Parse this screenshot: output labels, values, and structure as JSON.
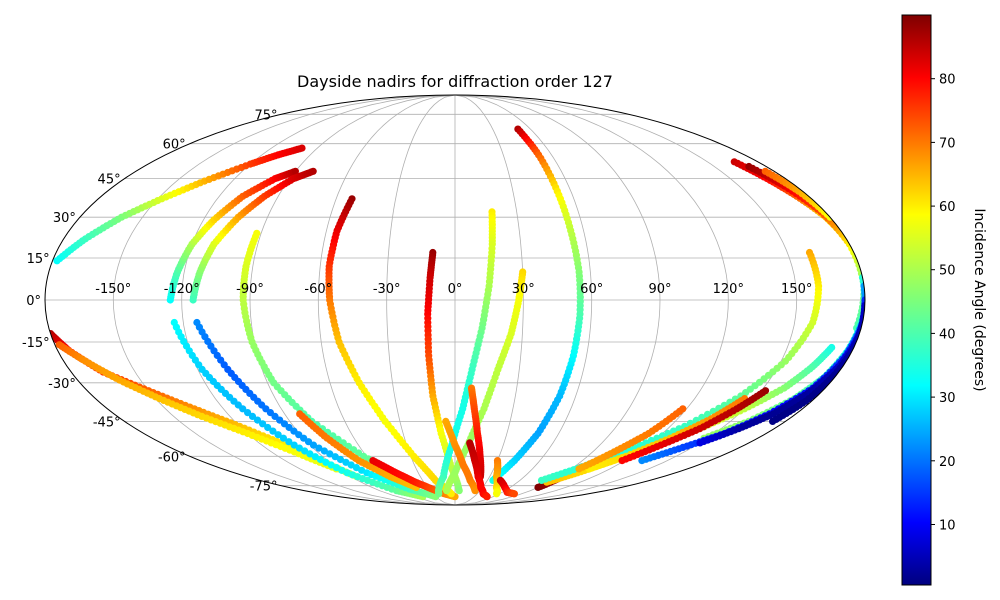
{
  "chart_data": {
    "type": "scatter",
    "projection": "mollweide",
    "title": "Dayside nadirs for diffraction order 127",
    "lon_ticks": [
      "-150°",
      "-120°",
      "-90°",
      "-60°",
      "-30°",
      "0°",
      "30°",
      "60°",
      "90°",
      "120°",
      "150°"
    ],
    "lon_tick_values": [
      -150,
      -120,
      -90,
      -60,
      -30,
      0,
      30,
      60,
      90,
      120,
      150
    ],
    "lat_ticks": [
      "75°",
      "60°",
      "45°",
      "30°",
      "15°",
      "0°",
      "-15°",
      "-30°",
      "-45°",
      "-60°",
      "-75°"
    ],
    "lat_tick_values": [
      75,
      60,
      45,
      30,
      15,
      0,
      -15,
      -30,
      -45,
      -60,
      -75
    ],
    "grid": true,
    "colormap": "jet",
    "colorbar": {
      "label": "Incidence Angle (degrees)",
      "ticks": [
        "10",
        "20",
        "30",
        "40",
        "50",
        "60",
        "70",
        "80"
      ],
      "tick_values": [
        10,
        20,
        30,
        40,
        50,
        60,
        70,
        80
      ],
      "range": [
        0.5,
        90
      ]
    },
    "series": [
      {
        "points": [
          [
            -180,
            -12,
            86
          ],
          [
            -175,
            -18,
            80
          ],
          [
            -165,
            -26,
            76
          ],
          [
            -150,
            -33,
            72
          ],
          [
            -135,
            -40,
            68
          ],
          [
            -120,
            -47,
            64
          ],
          [
            -105,
            -55,
            60
          ],
          [
            -95,
            -62,
            55
          ],
          [
            -85,
            -70,
            50
          ]
        ]
      },
      {
        "points": [
          [
            -178,
            -16,
            72
          ],
          [
            -170,
            -22,
            68
          ],
          [
            -160,
            -29,
            66
          ],
          [
            -148,
            -36,
            64
          ],
          [
            -135,
            -43,
            62
          ],
          [
            -120,
            -50,
            60
          ],
          [
            -105,
            -58,
            58
          ],
          [
            -92,
            -66,
            56
          ]
        ]
      },
      {
        "points": [
          [
            -178,
            14,
            32
          ],
          [
            -170,
            22,
            38
          ],
          [
            -160,
            30,
            45
          ],
          [
            -148,
            37,
            55
          ],
          [
            -135,
            44,
            65
          ],
          [
            -120,
            51,
            75
          ],
          [
            -110,
            55,
            80
          ],
          [
            -100,
            58,
            83
          ]
        ]
      },
      {
        "points": [
          [
            -125,
            0,
            32
          ],
          [
            -123,
            10,
            40
          ],
          [
            -120,
            20,
            50
          ],
          [
            -115,
            29,
            62
          ],
          [
            -108,
            38,
            72
          ],
          [
            -98,
            45,
            80
          ],
          [
            -90,
            48,
            86
          ]
        ]
      },
      {
        "points": [
          [
            -124,
            -8,
            32
          ],
          [
            -118,
            -25,
            28
          ],
          [
            -110,
            -40,
            26
          ],
          [
            -100,
            -55,
            28
          ],
          [
            -88,
            -68,
            34
          ],
          [
            -70,
            -78,
            42
          ],
          [
            -50,
            -82,
            50
          ]
        ]
      },
      {
        "points": [
          [
            -115,
            0,
            38
          ],
          [
            -113,
            10,
            46
          ],
          [
            -110,
            20,
            55
          ],
          [
            -104,
            30,
            66
          ],
          [
            -97,
            38,
            75
          ],
          [
            -88,
            45,
            83
          ],
          [
            -80,
            48,
            86
          ]
        ]
      },
      {
        "points": [
          [
            -114,
            -8,
            22
          ],
          [
            -106,
            -25,
            18
          ],
          [
            -98,
            -40,
            20
          ],
          [
            -88,
            -55,
            24
          ],
          [
            -72,
            -68,
            30
          ],
          [
            -52,
            -77,
            38
          ],
          [
            -30,
            -82,
            46
          ]
        ]
      },
      {
        "points": [
          [
            -92,
            24,
            58
          ],
          [
            -93,
            12,
            55
          ],
          [
            -93,
            0,
            52
          ],
          [
            -91,
            -15,
            48
          ],
          [
            -87,
            -30,
            44
          ],
          [
            -78,
            -45,
            40
          ],
          [
            -62,
            -60,
            42
          ],
          [
            -45,
            -72,
            46
          ]
        ]
      },
      {
        "points": [
          [
            -82,
            -42,
            72
          ],
          [
            -76,
            -52,
            70
          ],
          [
            -68,
            -62,
            68
          ],
          [
            -56,
            -70,
            66
          ],
          [
            -42,
            -76,
            64
          ]
        ]
      },
      {
        "points": [
          [
            -58,
            -62,
            82
          ],
          [
            -48,
            -68,
            80
          ],
          [
            -38,
            -73,
            78
          ],
          [
            -26,
            -77,
            74
          ],
          [
            -14,
            -80,
            70
          ],
          [
            0,
            -82,
            66
          ]
        ]
      },
      {
        "points": [
          [
            -52,
            37,
            88
          ],
          [
            -55,
            25,
            82
          ],
          [
            -56,
            12,
            76
          ],
          [
            -55,
            0,
            70
          ],
          [
            -52,
            -15,
            64
          ],
          [
            -46,
            -30,
            60
          ],
          [
            -38,
            -45,
            58
          ],
          [
            -28,
            -60,
            60
          ],
          [
            -18,
            -72,
            62
          ],
          [
            -5,
            -80,
            60
          ]
        ]
      },
      {
        "points": [
          [
            -10,
            17,
            88
          ],
          [
            -11,
            8,
            84
          ],
          [
            -12,
            -5,
            80
          ],
          [
            -12,
            -20,
            74
          ],
          [
            -11,
            -35,
            66
          ],
          [
            -8,
            -50,
            58
          ],
          [
            -3,
            -65,
            52
          ],
          [
            5,
            -78,
            46
          ]
        ]
      },
      {
        "points": [
          [
            18,
            32,
            60
          ],
          [
            17,
            20,
            55
          ],
          [
            15,
            5,
            50
          ],
          [
            12,
            -10,
            44
          ],
          [
            8,
            -25,
            38
          ],
          [
            4,
            -40,
            34
          ],
          [
            -2,
            -55,
            34
          ],
          [
            -10,
            -70,
            38
          ],
          [
            -22,
            -80,
            44
          ]
        ]
      },
      {
        "points": [
          [
            30,
            10,
            62
          ],
          [
            28,
            0,
            58
          ],
          [
            25,
            -12,
            55
          ],
          [
            20,
            -25,
            52
          ],
          [
            15,
            -40,
            50
          ],
          [
            8,
            -55,
            48
          ],
          [
            0,
            -68,
            48
          ],
          [
            -10,
            -78,
            50
          ]
        ]
      },
      {
        "points": [
          [
            8,
            -32,
            70
          ],
          [
            10,
            -40,
            74
          ],
          [
            13,
            -50,
            78
          ],
          [
            17,
            -60,
            82
          ],
          [
            22,
            -70,
            84
          ]
        ]
      },
      {
        "points": [
          [
            -5,
            -45,
            66
          ],
          [
            0,
            -55,
            68
          ],
          [
            6,
            -64,
            70
          ],
          [
            14,
            -72,
            70
          ],
          [
            24,
            -78,
            68
          ]
        ]
      },
      {
        "points": [
          [
            9,
            -54,
            86
          ],
          [
            14,
            -62,
            84
          ],
          [
            20,
            -70,
            82
          ],
          [
            28,
            -76,
            80
          ],
          [
            38,
            -80,
            80
          ],
          [
            50,
            -82,
            78
          ]
        ]
      },
      {
        "points": [
          [
            50,
            67,
            86
          ],
          [
            52,
            55,
            72
          ],
          [
            53,
            40,
            60
          ],
          [
            54,
            25,
            52
          ],
          [
            55,
            10,
            46
          ],
          [
            55,
            -5,
            40
          ],
          [
            54,
            -20,
            32
          ],
          [
            52,
            -35,
            26
          ],
          [
            48,
            -50,
            24
          ],
          [
            42,
            -62,
            28
          ],
          [
            35,
            -72,
            34
          ]
        ]
      },
      {
        "points": [
          [
            30,
            -62,
            70
          ],
          [
            36,
            -70,
            66
          ],
          [
            45,
            -76,
            62
          ],
          [
            56,
            -80,
            58
          ]
        ]
      },
      {
        "points": [
          [
            42,
            -72,
            84
          ],
          [
            54,
            -76,
            82
          ],
          [
            66,
            -79,
            78
          ],
          [
            80,
            -80,
            74
          ]
        ]
      },
      {
        "points": [
          [
            90,
            -76,
            90
          ],
          [
            93,
            -70,
            86
          ],
          [
            96,
            -65,
            82
          ]
        ]
      },
      {
        "points": [
          [
            170,
            -17,
            34
          ],
          [
            166,
            -24,
            40
          ],
          [
            160,
            -32,
            46
          ],
          [
            150,
            -40,
            52
          ],
          [
            138,
            -48,
            56
          ],
          [
            125,
            -55,
            58
          ],
          [
            112,
            -62,
            60
          ],
          [
            100,
            -68,
            62
          ],
          [
            88,
            -73,
            64
          ]
        ]
      },
      {
        "points": [
          [
            160,
            17,
            66
          ],
          [
            160,
            5,
            60
          ],
          [
            158,
            -8,
            54
          ],
          [
            152,
            -22,
            48
          ],
          [
            142,
            -35,
            42
          ],
          [
            128,
            -47,
            38
          ],
          [
            112,
            -57,
            36
          ],
          [
            96,
            -65,
            36
          ],
          [
            80,
            -72,
            38
          ]
        ]
      },
      {
        "points": [
          [
            145,
            -36,
            70
          ],
          [
            138,
            -44,
            68
          ],
          [
            128,
            -52,
            64
          ],
          [
            116,
            -60,
            62
          ],
          [
            104,
            -66,
            60
          ]
        ]
      },
      {
        "points": [
          [
            118,
            -40,
            72
          ],
          [
            112,
            -50,
            70
          ],
          [
            104,
            -58,
            68
          ],
          [
            96,
            -66,
            66
          ]
        ]
      },
      {
        "points": [
          [
            152,
            -33,
            88
          ],
          [
            146,
            -40,
            86
          ],
          [
            138,
            -48,
            84
          ],
          [
            128,
            -55,
            82
          ],
          [
            118,
            -62,
            80
          ]
        ]
      },
      {
        "points": [
          [
            166,
            52,
            84
          ],
          [
            170,
            45,
            80
          ],
          [
            174,
            38,
            72
          ],
          [
            178,
            30,
            62
          ],
          [
            180,
            22,
            55
          ]
        ]
      },
      {
        "points": [
          [
            170,
            50,
            88
          ],
          [
            174,
            42,
            82
          ],
          [
            178,
            32,
            74
          ],
          [
            180,
            20,
            60
          ],
          [
            180,
            5,
            45
          ],
          [
            178,
            -10,
            40
          ]
        ]
      },
      {
        "points": [
          [
            175,
            48,
            72
          ],
          [
            178,
            40,
            66
          ],
          [
            180,
            30,
            58
          ]
        ]
      },
      {
        "points": [
          [
            180,
            8,
            36
          ],
          [
            180,
            -5,
            34
          ],
          [
            178,
            -18,
            34
          ],
          [
            175,
            -28,
            38
          ],
          [
            170,
            -36,
            42
          ],
          [
            160,
            -45,
            46
          ],
          [
            148,
            -52,
            48
          ]
        ]
      },
      {
        "points": [
          [
            180,
            5,
            24
          ],
          [
            180,
            -8,
            20
          ],
          [
            178,
            -20,
            16
          ],
          [
            174,
            -32,
            12
          ],
          [
            166,
            -42,
            10
          ],
          [
            156,
            -50,
            12
          ],
          [
            144,
            -56,
            16
          ],
          [
            132,
            -62,
            22
          ]
        ]
      },
      {
        "points": [
          [
            180,
            0,
            14
          ],
          [
            180,
            -12,
            10
          ],
          [
            178,
            -24,
            6
          ],
          [
            174,
            -34,
            3
          ],
          [
            168,
            -42,
            2
          ],
          [
            160,
            -48,
            3
          ],
          [
            150,
            -54,
            8
          ]
        ]
      },
      {
        "points": [
          [
            180,
            -2,
            6
          ],
          [
            180,
            -15,
            4
          ],
          [
            179,
            -27,
            2
          ],
          [
            177,
            -37,
            1
          ],
          [
            173,
            -45,
            1
          ]
        ]
      }
    ]
  }
}
